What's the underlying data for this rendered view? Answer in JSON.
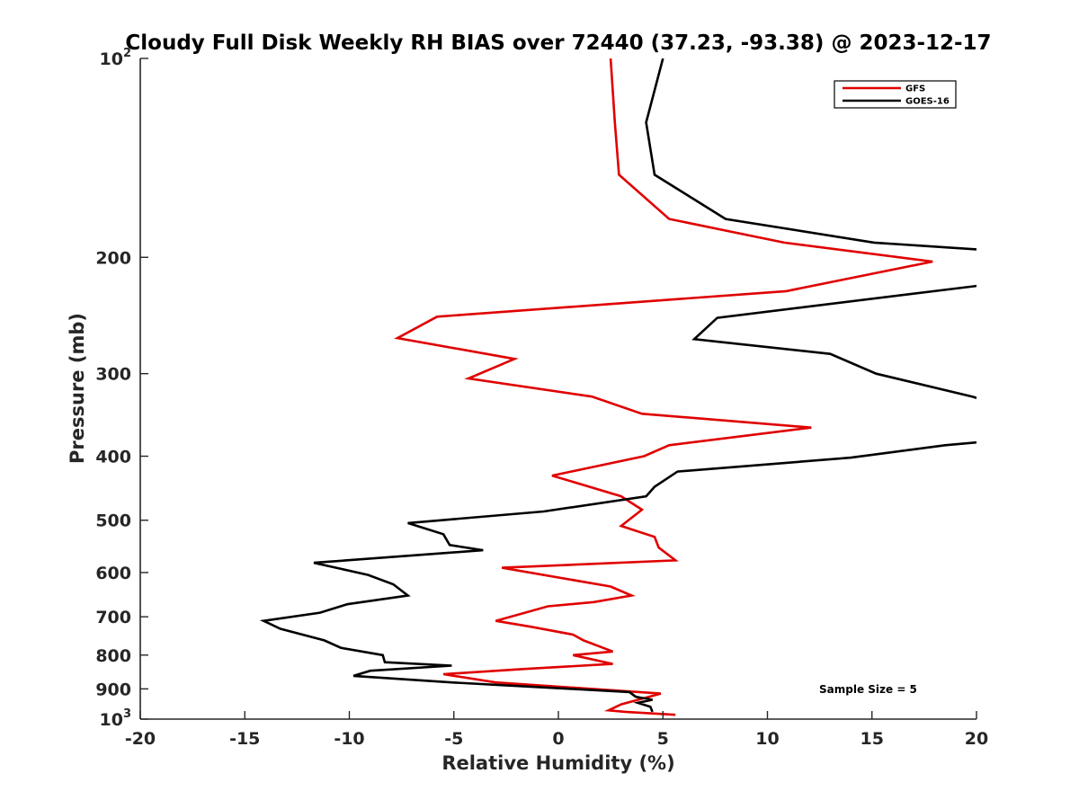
{
  "chart_data": {
    "type": "line",
    "title": "Cloudy Full Disk Weekly RH BIAS over 72440 (37.23, -93.38) @ 2023-12-17",
    "xlabel": "Relative Humidity (%)",
    "ylabel": "Pressure (mb)",
    "xlim": [
      -20,
      20
    ],
    "ylim": [
      100,
      1000
    ],
    "y_scale": "log",
    "y_reversed": true,
    "grid": false,
    "legend_position": "top-right",
    "x_ticks": [
      -20,
      -15,
      -10,
      -5,
      0,
      5,
      10,
      15,
      20
    ],
    "x_tick_labels": [
      "-20",
      "-15",
      "-10",
      "-5",
      "0",
      "5",
      "10",
      "15",
      "20"
    ],
    "y_ticks": [
      100,
      200,
      300,
      400,
      500,
      600,
      700,
      800,
      900,
      1000
    ],
    "y_tick_labels": [
      {
        "base": "10",
        "sup": "2"
      },
      {
        "base": "200",
        "sup": ""
      },
      {
        "base": "300",
        "sup": ""
      },
      {
        "base": "400",
        "sup": ""
      },
      {
        "base": "500",
        "sup": ""
      },
      {
        "base": "600",
        "sup": ""
      },
      {
        "base": "700",
        "sup": ""
      },
      {
        "base": "800",
        "sup": ""
      },
      {
        "base": "900",
        "sup": ""
      },
      {
        "base": "10",
        "sup": "3"
      }
    ],
    "annotation": "Sample Size = 5",
    "series": [
      {
        "name": "GFS",
        "color": "#e00000",
        "points": [
          [
            2.5,
            100
          ],
          [
            2.7,
            125
          ],
          [
            2.9,
            150
          ],
          [
            5.3,
            175
          ],
          [
            10.8,
            190
          ],
          [
            17.9,
            203
          ],
          [
            10.9,
            225
          ],
          [
            -5.8,
            246
          ],
          [
            -7.7,
            265
          ],
          [
            -2.1,
            285
          ],
          [
            -4.3,
            305
          ],
          [
            1.6,
            325
          ],
          [
            4.0,
            345
          ],
          [
            12.1,
            362
          ],
          [
            5.3,
            385
          ],
          [
            4.1,
            400
          ],
          [
            -0.3,
            428
          ],
          [
            3.0,
            460
          ],
          [
            4.0,
            482
          ],
          [
            3.0,
            510
          ],
          [
            4.6,
            530
          ],
          [
            4.8,
            550
          ],
          [
            5.6,
            575
          ],
          [
            -2.7,
            590
          ],
          [
            2.5,
            630
          ],
          [
            3.5,
            650
          ],
          [
            1.7,
            665
          ],
          [
            -0.5,
            675
          ],
          [
            -3.0,
            710
          ],
          [
            -1.3,
            725
          ],
          [
            0.7,
            745
          ],
          [
            1.2,
            760
          ],
          [
            2.6,
            790
          ],
          [
            0.7,
            800
          ],
          [
            2.6,
            825
          ],
          [
            -1.7,
            840
          ],
          [
            -5.5,
            855
          ],
          [
            -3.0,
            880
          ],
          [
            4.9,
            915
          ],
          [
            3.0,
            950
          ],
          [
            2.4,
            970
          ],
          [
            3.2,
            975
          ],
          [
            5.6,
            985
          ]
        ]
      },
      {
        "name": "GOES-16",
        "color": "#000000",
        "points": [
          [
            5.0,
            100
          ],
          [
            4.2,
            125
          ],
          [
            4.6,
            150
          ],
          [
            8.0,
            175
          ],
          [
            15.1,
            190
          ],
          [
            20.5,
            195
          ],
          [
            20.5,
            220
          ],
          [
            7.6,
            247
          ],
          [
            6.5,
            266
          ],
          [
            13.0,
            280
          ],
          [
            15.2,
            300
          ],
          [
            19.8,
            325
          ],
          [
            20.5,
            330
          ],
          [
            20.5,
            380
          ],
          [
            18.5,
            385
          ],
          [
            14.0,
            402
          ],
          [
            5.7,
            422
          ],
          [
            4.6,
            445
          ],
          [
            4.2,
            460
          ],
          [
            -0.7,
            485
          ],
          [
            -7.2,
            505
          ],
          [
            -5.5,
            525
          ],
          [
            -5.2,
            545
          ],
          [
            -3.6,
            555
          ],
          [
            -11.7,
            580
          ],
          [
            -9.1,
            605
          ],
          [
            -7.9,
            625
          ],
          [
            -7.2,
            650
          ],
          [
            -10.1,
            670
          ],
          [
            -11.4,
            690
          ],
          [
            -14.1,
            710
          ],
          [
            -13.3,
            730
          ],
          [
            -11.2,
            760
          ],
          [
            -10.4,
            780
          ],
          [
            -8.4,
            800
          ],
          [
            -8.3,
            820
          ],
          [
            -5.1,
            830
          ],
          [
            -9.0,
            845
          ],
          [
            -9.8,
            860
          ],
          [
            -5.1,
            880
          ],
          [
            3.4,
            910
          ],
          [
            3.7,
            925
          ],
          [
            4.5,
            935
          ],
          [
            3.8,
            945
          ],
          [
            4.4,
            958
          ],
          [
            4.5,
            975
          ]
        ]
      }
    ]
  }
}
